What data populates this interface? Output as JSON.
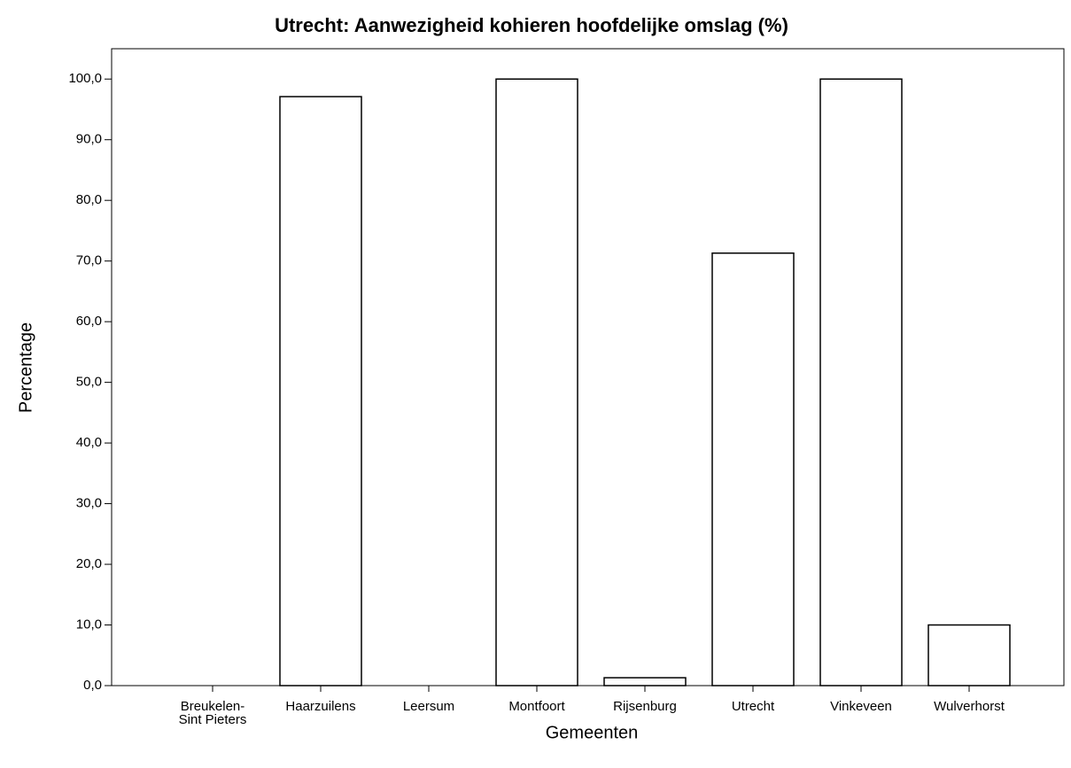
{
  "chart_data": {
    "type": "bar",
    "title": "Utrecht: Aanwezigheid kohieren hoofdelijke omslag (%)",
    "x_label": "Gemeenten",
    "y_label": "Percentage",
    "categories": [
      "Breukelen-\nSint Pieters",
      "Haarzuilens",
      "Leersum",
      "Montfoort",
      "Rijsenburg",
      "Utrecht",
      "Vinkeveen",
      "Wulverhorst"
    ],
    "values": [
      0,
      97.1,
      0,
      100,
      1.3,
      71.3,
      100,
      10
    ],
    "color": "#ffffff",
    "ylim": [
      0,
      105
    ],
    "yticks": [
      {
        "value": 0,
        "label": "0,0"
      },
      {
        "value": 10,
        "label": "10,0"
      },
      {
        "value": 20,
        "label": "20,0"
      },
      {
        "value": 30,
        "label": "30,0"
      },
      {
        "value": 40,
        "label": "40,0"
      },
      {
        "value": 50,
        "label": "50,0"
      },
      {
        "value": 60,
        "label": "60,0"
      },
      {
        "value": 70,
        "label": "70,0"
      },
      {
        "value": 80,
        "label": "80,0"
      },
      {
        "value": 90,
        "label": "90,0"
      },
      {
        "value": 100,
        "label": "100,0"
      }
    ],
    "grid": false
  }
}
